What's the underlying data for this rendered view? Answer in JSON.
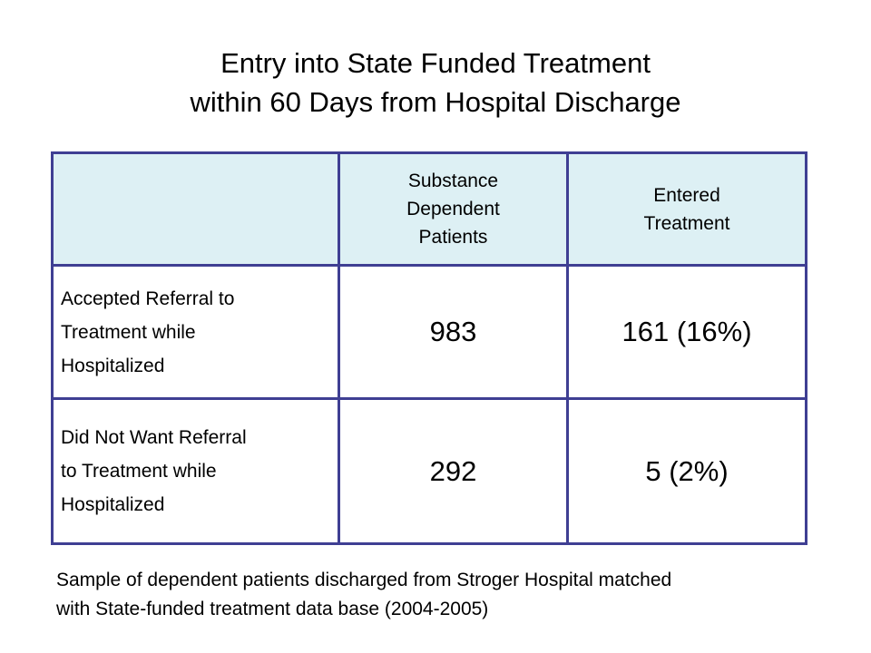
{
  "title": {
    "line1": "Entry into State Funded Treatment",
    "line2": "within 60 Days from Hospital Discharge"
  },
  "table": {
    "header": {
      "corner": "",
      "col1": [
        "Substance",
        "Dependent",
        "Patients"
      ],
      "col2": [
        "Entered",
        "Treatment"
      ]
    },
    "rows": [
      {
        "label": [
          "Accepted Referral to",
          "Treatment while",
          "Hospitalized"
        ],
        "patients": "983",
        "entered": "161 (16%)"
      },
      {
        "label": [
          "Did Not Want Referral",
          "to Treatment while",
          "Hospitalized"
        ],
        "patients": "292",
        "entered": "5 (2%)"
      }
    ],
    "colors": {
      "border": "#3f3f93",
      "header_bg": "#ddf0f4"
    }
  },
  "note": {
    "line1": "Sample of dependent patients discharged from Stroger Hospital matched",
    "line2": "with State-funded treatment data base (2004-2005)"
  }
}
